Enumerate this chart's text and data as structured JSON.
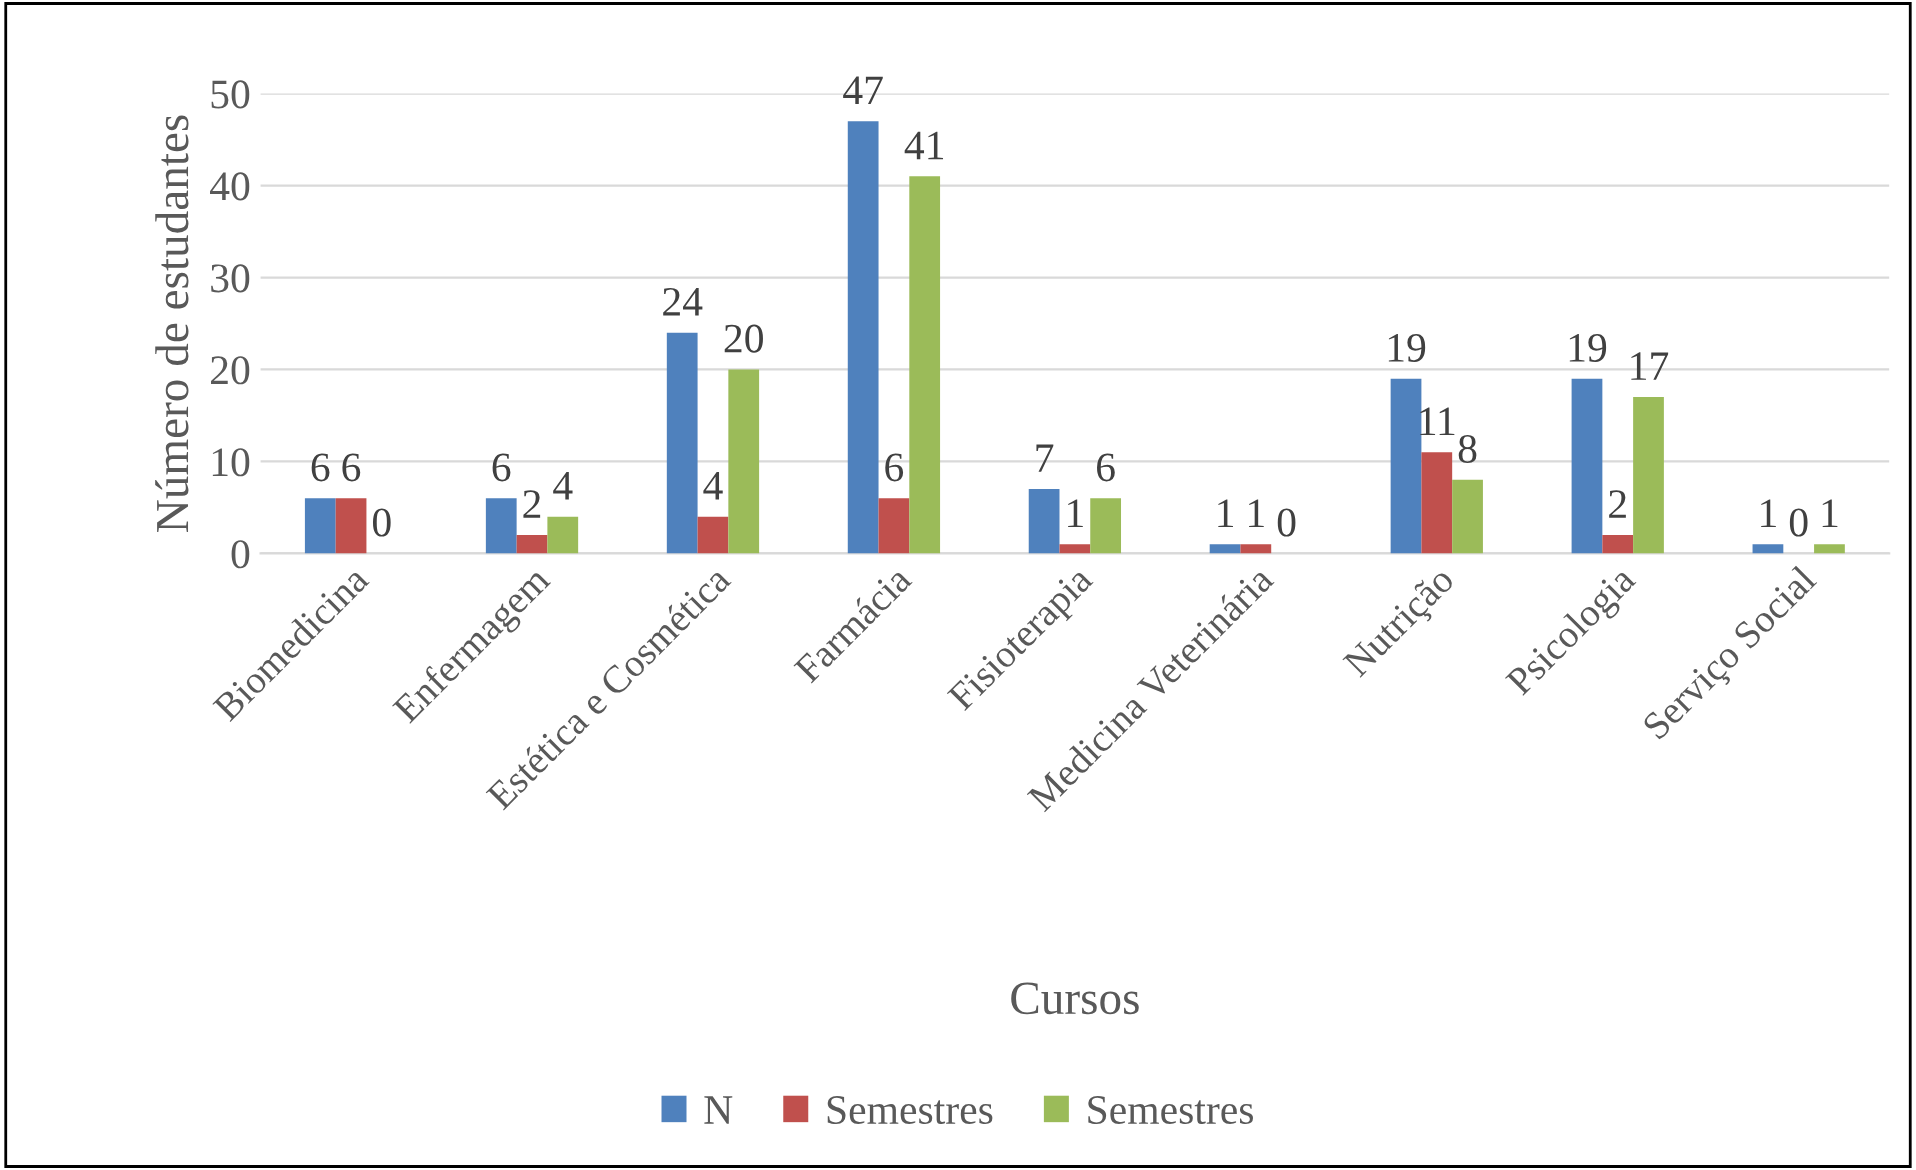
{
  "chart_data": {
    "type": "bar",
    "xlabel": "Cursos",
    "ylabel": "Número de estudantes",
    "categories": [
      "Biomedicina",
      "Enfermagem",
      "Estética e Cosmética",
      "Farmácia",
      "Fisioterapia",
      "Medicina Veterinária",
      "Nutrição",
      "Psicologia",
      "Serviço Social"
    ],
    "series": [
      {
        "name": "N",
        "color": "#4f81bd",
        "values": [
          6,
          6,
          24,
          47,
          7,
          1,
          19,
          19,
          1
        ]
      },
      {
        "name": "Semestres",
        "color": "#c0504d",
        "values": [
          6,
          2,
          4,
          6,
          1,
          1,
          11,
          2,
          0
        ]
      },
      {
        "name": "Semestres",
        "color": "#9bbb59",
        "values": [
          0,
          4,
          20,
          41,
          6,
          0,
          8,
          17,
          1
        ]
      }
    ],
    "ylim": [
      0,
      50
    ],
    "yticks": [
      0,
      10,
      20,
      30,
      40,
      50
    ],
    "grid": "y",
    "legend": "bottom",
    "data_labels": true
  }
}
